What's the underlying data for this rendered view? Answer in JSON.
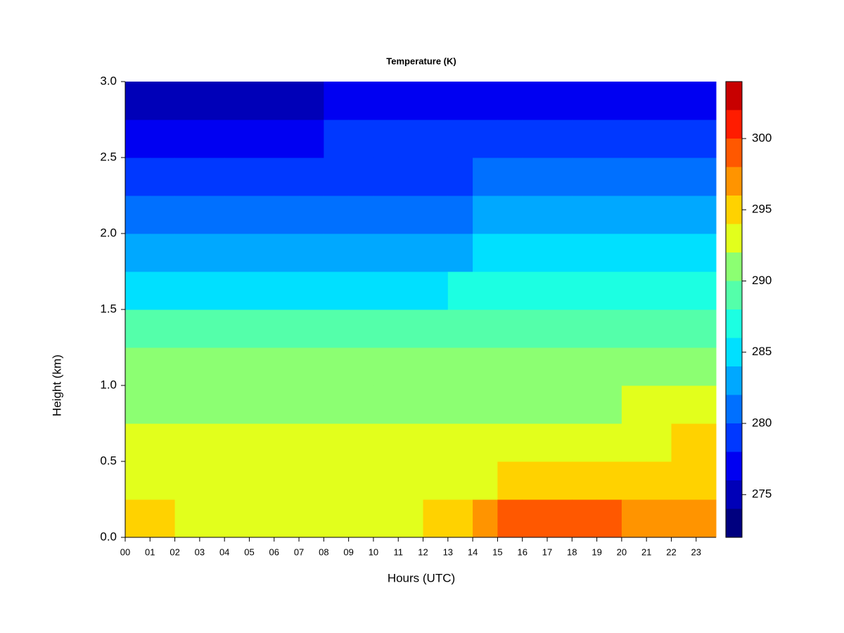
{
  "chart_data": {
    "type": "contour",
    "title": "Temperature (K)",
    "x_label": "Hours (UTC)",
    "y_label": "Height (km)",
    "x": [
      0,
      1,
      2,
      3,
      4,
      5,
      6,
      7,
      8,
      9,
      10,
      11,
      12,
      13,
      14,
      15,
      16,
      17,
      18,
      19,
      20,
      21,
      22,
      23
    ],
    "y": [
      0,
      0.25,
      0.5,
      0.75,
      1,
      1.25,
      1.5,
      1.75,
      2,
      2.25,
      2.5,
      2.75
    ],
    "z": [
      [
        294.5,
        293.2,
        292.8,
        291.8,
        290.2,
        288.0,
        285.6,
        283.3,
        281.3,
        279.4,
        277.5,
        275.0
      ],
      [
        294.2,
        293.0,
        292.8,
        291.8,
        290.2,
        288.0,
        285.6,
        283.3,
        281.3,
        279.4,
        277.6,
        275.0
      ],
      [
        293.8,
        293.0,
        292.8,
        291.8,
        290.2,
        288.0,
        285.7,
        283.4,
        281.4,
        279.5,
        277.7,
        275.2
      ],
      [
        293.8,
        293.0,
        292.8,
        291.8,
        290.2,
        288.1,
        285.7,
        283.4,
        281.4,
        279.5,
        277.7,
        275.3
      ],
      [
        293.6,
        293.0,
        292.8,
        291.9,
        290.3,
        288.1,
        285.8,
        283.5,
        281.5,
        279.6,
        277.8,
        275.5
      ],
      [
        293.5,
        293.0,
        292.7,
        291.9,
        290.3,
        288.1,
        285.8,
        283.5,
        281.5,
        279.6,
        277.8,
        275.7
      ],
      [
        293.4,
        293.0,
        292.7,
        291.9,
        290.3,
        288.1,
        285.8,
        283.5,
        281.5,
        279.6,
        277.9,
        275.8
      ],
      [
        293.3,
        292.9,
        292.6,
        291.9,
        290.3,
        288.1,
        285.8,
        283.5,
        281.5,
        279.6,
        277.9,
        275.9
      ],
      [
        293.3,
        292.9,
        292.6,
        291.9,
        290.3,
        288.2,
        285.9,
        283.6,
        281.6,
        279.7,
        278.0,
        276.0
      ],
      [
        293.2,
        292.8,
        292.5,
        291.8,
        290.3,
        288.2,
        285.9,
        283.6,
        281.6,
        279.7,
        278.0,
        276.0
      ],
      [
        293.0,
        292.6,
        292.1,
        291.6,
        290.3,
        288.2,
        285.9,
        283.6,
        281.6,
        279.7,
        278.0,
        276.1
      ],
      [
        293.4,
        292.5,
        292.0,
        291.5,
        290.3,
        288.2,
        285.9,
        283.6,
        281.6,
        279.7,
        278.0,
        276.2
      ],
      [
        294.2,
        292.6,
        292.0,
        291.4,
        290.2,
        288.1,
        285.9,
        283.7,
        281.7,
        279.8,
        278.1,
        276.3
      ],
      [
        295.3,
        293.0,
        292.1,
        291.4,
        290.2,
        288.2,
        286.0,
        283.8,
        281.8,
        279.9,
        278.2,
        276.4
      ],
      [
        296.8,
        293.6,
        292.3,
        291.5,
        290.3,
        288.3,
        286.2,
        284.0,
        282.0,
        280.1,
        278.3,
        276.6
      ],
      [
        298.2,
        294.3,
        292.4,
        291.5,
        290.3,
        288.4,
        286.3,
        284.2,
        282.2,
        280.3,
        278.5,
        276.8
      ],
      [
        298.6,
        294.6,
        292.6,
        291.6,
        290.3,
        288.5,
        286.5,
        284.5,
        282.5,
        280.6,
        278.8,
        277.1
      ],
      [
        298.3,
        294.9,
        292.9,
        291.7,
        290.4,
        288.5,
        286.5,
        284.4,
        282.3,
        280.4,
        278.6,
        276.9
      ],
      [
        298.7,
        295.0,
        293.0,
        291.8,
        290.4,
        288.6,
        286.6,
        284.5,
        282.4,
        280.5,
        278.6,
        277.0
      ],
      [
        298.5,
        294.9,
        293.1,
        291.9,
        290.5,
        288.6,
        286.6,
        284.6,
        282.5,
        280.5,
        278.6,
        277.0
      ],
      [
        297.8,
        294.8,
        293.6,
        292.1,
        290.6,
        288.7,
        286.7,
        284.7,
        282.6,
        280.6,
        278.7,
        277.0
      ],
      [
        297.5,
        294.9,
        293.9,
        292.2,
        290.6,
        288.7,
        286.7,
        284.7,
        282.6,
        280.6,
        278.7,
        277.1
      ],
      [
        297.8,
        295.1,
        294.2,
        292.3,
        290.6,
        288.8,
        286.8,
        284.8,
        282.6,
        280.7,
        278.7,
        277.1
      ],
      [
        297.6,
        295.2,
        294.4,
        292.4,
        290.7,
        288.8,
        286.8,
        284.8,
        282.7,
        280.7,
        278.8,
        277.1
      ]
    ],
    "xlim": [
      0,
      23.8
    ],
    "ylim": [
      0,
      3
    ],
    "xticks": [
      {
        "value": 0,
        "label": "00"
      },
      {
        "value": 1,
        "label": "01"
      },
      {
        "value": 2,
        "label": "02"
      },
      {
        "value": 3,
        "label": "03"
      },
      {
        "value": 4,
        "label": "04"
      },
      {
        "value": 5,
        "label": "05"
      },
      {
        "value": 6,
        "label": "06"
      },
      {
        "value": 7,
        "label": "07"
      },
      {
        "value": 8,
        "label": "08"
      },
      {
        "value": 9,
        "label": "09"
      },
      10,
      11,
      12,
      13,
      14,
      15,
      16,
      17,
      18,
      19,
      20,
      21,
      22,
      23
    ],
    "yticks": [
      {
        "value": 0,
        "label": "0.0"
      },
      0.5,
      {
        "value": 1,
        "label": "1.0"
      },
      1.5,
      {
        "value": 2,
        "label": "2.0"
      },
      2.5,
      {
        "value": 3,
        "label": "3.0"
      }
    ],
    "levels": [
      272,
      274,
      276,
      278,
      280,
      282,
      284,
      286,
      288,
      290,
      292,
      294,
      296,
      298,
      300,
      302,
      304
    ],
    "colors": [
      "#00007f",
      "#0000b8",
      "#0000f2",
      "#0038ff",
      "#0070ff",
      "#00a8ff",
      "#00e0ff",
      "#1cffe2",
      "#54ffaa",
      "#8cff72",
      "#e2ff1c",
      "#ffd200",
      "#ff9400",
      "#ff5800",
      "#ff1c00",
      "#c80000",
      "#7f0000"
    ],
    "zticks": [
      275,
      280,
      285,
      290,
      295,
      300
    ]
  }
}
